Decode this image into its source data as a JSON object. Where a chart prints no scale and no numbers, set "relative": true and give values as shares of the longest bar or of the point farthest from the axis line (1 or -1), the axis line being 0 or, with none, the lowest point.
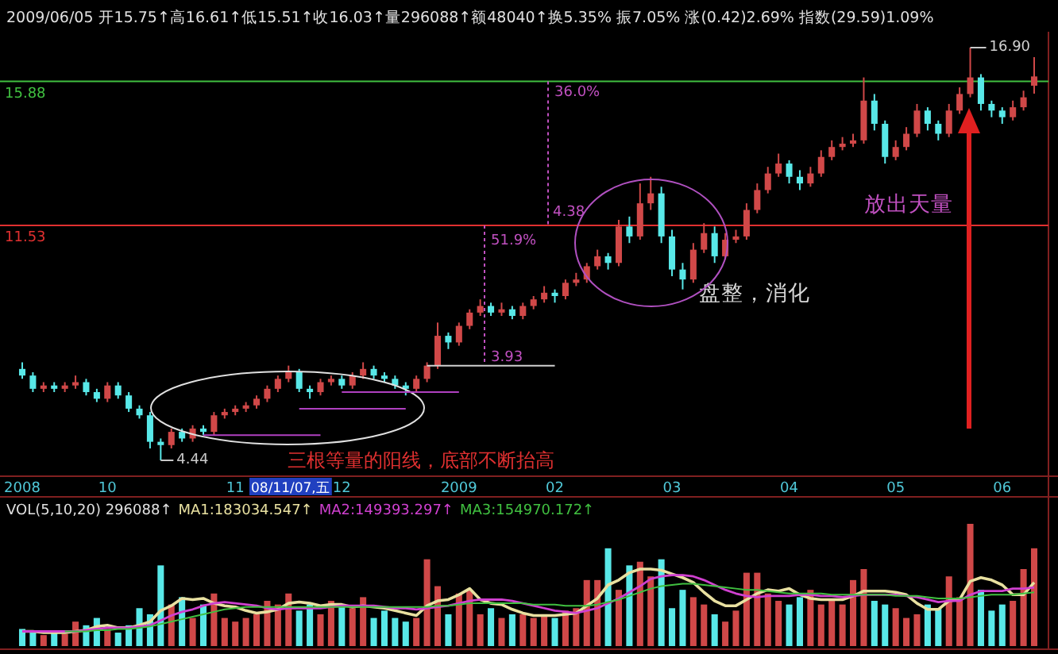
{
  "chart_data": [
    {
      "type": "candlestick",
      "subtitle": "2009/06/05 开15.75↑高16.61↑低15.51↑收16.03↑量296088↑额48040↑换5.35% 振7.05% 涨(0.42)2.69% 指数(29.59)1.09%",
      "categories": [
        "2008",
        null,
        null,
        null,
        null,
        null,
        null,
        null,
        "10",
        null,
        null,
        null,
        null,
        null,
        null,
        null,
        null,
        null,
        null,
        null,
        "11",
        null,
        null,
        null,
        null,
        null,
        null,
        null,
        null,
        null,
        "12",
        null,
        null,
        null,
        null,
        null,
        null,
        null,
        null,
        null,
        null,
        "2009",
        null,
        null,
        null,
        null,
        null,
        null,
        null,
        null,
        "02",
        null,
        null,
        null,
        null,
        null,
        null,
        null,
        null,
        null,
        null,
        "03",
        null,
        null,
        null,
        null,
        null,
        null,
        null,
        null,
        null,
        null,
        "04",
        null,
        null,
        null,
        null,
        null,
        null,
        null,
        null,
        null,
        "05",
        null,
        null,
        null,
        null,
        null,
        null,
        null,
        null,
        null,
        "06",
        null,
        null,
        null
      ],
      "ohlc": [
        [
          7.2,
          7.4,
          6.9,
          7.0
        ],
        [
          7.0,
          7.1,
          6.5,
          6.6
        ],
        [
          6.6,
          6.8,
          6.5,
          6.7
        ],
        [
          6.7,
          6.8,
          6.5,
          6.6
        ],
        [
          6.6,
          6.8,
          6.5,
          6.7
        ],
        [
          6.7,
          7.0,
          6.6,
          6.8
        ],
        [
          6.8,
          6.9,
          6.4,
          6.5
        ],
        [
          6.5,
          6.6,
          6.2,
          6.3
        ],
        [
          6.3,
          6.8,
          6.2,
          6.7
        ],
        [
          6.7,
          6.8,
          6.3,
          6.4
        ],
        [
          6.4,
          6.5,
          5.9,
          6.0
        ],
        [
          6.0,
          6.1,
          5.7,
          5.8
        ],
        [
          5.8,
          5.9,
          4.8,
          5.0
        ],
        [
          5.0,
          5.1,
          4.44,
          4.9
        ],
        [
          4.9,
          5.4,
          4.8,
          5.3
        ],
        [
          5.3,
          5.4,
          5.0,
          5.1
        ],
        [
          5.1,
          5.5,
          5.0,
          5.4
        ],
        [
          5.4,
          5.5,
          5.2,
          5.3
        ],
        [
          5.3,
          5.9,
          5.2,
          5.8
        ],
        [
          5.8,
          6.0,
          5.7,
          5.9
        ],
        [
          5.9,
          6.1,
          5.8,
          6.0
        ],
        [
          6.0,
          6.2,
          5.9,
          6.1
        ],
        [
          6.1,
          6.4,
          6.0,
          6.3
        ],
        [
          6.3,
          6.7,
          6.2,
          6.6
        ],
        [
          6.6,
          7.0,
          6.5,
          6.9
        ],
        [
          6.9,
          7.3,
          6.8,
          7.1
        ],
        [
          7.1,
          7.2,
          6.5,
          6.6
        ],
        [
          6.6,
          6.7,
          6.3,
          6.5
        ],
        [
          6.5,
          6.9,
          6.4,
          6.8
        ],
        [
          6.8,
          7.0,
          6.7,
          6.9
        ],
        [
          6.9,
          7.0,
          6.6,
          6.7
        ],
        [
          6.7,
          7.1,
          6.6,
          7.0
        ],
        [
          7.0,
          7.4,
          6.9,
          7.2
        ],
        [
          7.2,
          7.3,
          6.9,
          7.0
        ],
        [
          7.0,
          7.1,
          6.8,
          6.9
        ],
        [
          6.9,
          7.0,
          6.6,
          6.7
        ],
        [
          6.7,
          6.8,
          6.4,
          6.6
        ],
        [
          6.6,
          7.0,
          6.5,
          6.9
        ],
        [
          6.9,
          7.4,
          6.8,
          7.3
        ],
        [
          7.3,
          8.6,
          7.2,
          8.2
        ],
        [
          8.2,
          8.3,
          7.8,
          8.0
        ],
        [
          8.0,
          8.6,
          7.9,
          8.5
        ],
        [
          8.5,
          9.0,
          8.4,
          8.9
        ],
        [
          8.9,
          9.3,
          8.8,
          9.1
        ],
        [
          9.1,
          9.2,
          8.8,
          8.9
        ],
        [
          8.9,
          9.2,
          8.8,
          9.0
        ],
        [
          9.0,
          9.1,
          8.7,
          8.8
        ],
        [
          8.8,
          9.2,
          8.7,
          9.1
        ],
        [
          9.1,
          9.4,
          9.0,
          9.3
        ],
        [
          9.3,
          9.7,
          9.2,
          9.5
        ],
        [
          9.5,
          9.6,
          9.2,
          9.4
        ],
        [
          9.4,
          9.9,
          9.3,
          9.8
        ],
        [
          9.8,
          10.1,
          9.7,
          9.9
        ],
        [
          9.9,
          10.4,
          9.8,
          10.3
        ],
        [
          10.3,
          10.8,
          10.2,
          10.6
        ],
        [
          10.6,
          10.7,
          10.2,
          10.4
        ],
        [
          10.4,
          11.7,
          10.3,
          11.5
        ],
        [
          11.5,
          11.8,
          11.0,
          11.2
        ],
        [
          11.2,
          12.8,
          11.1,
          12.2
        ],
        [
          12.2,
          13.0,
          12.0,
          12.5
        ],
        [
          12.5,
          12.7,
          11.0,
          11.2
        ],
        [
          11.2,
          11.4,
          10.0,
          10.2
        ],
        [
          10.2,
          10.4,
          9.6,
          9.9
        ],
        [
          9.9,
          11.0,
          9.8,
          10.8
        ],
        [
          10.8,
          11.6,
          10.7,
          11.3
        ],
        [
          11.3,
          11.5,
          10.4,
          10.6
        ],
        [
          10.6,
          11.3,
          10.5,
          11.1
        ],
        [
          11.1,
          11.4,
          11.0,
          11.2
        ],
        [
          11.2,
          12.2,
          11.1,
          12.0
        ],
        [
          12.0,
          12.8,
          11.9,
          12.6
        ],
        [
          12.6,
          13.3,
          12.5,
          13.1
        ],
        [
          13.1,
          13.7,
          13.0,
          13.4
        ],
        [
          13.4,
          13.5,
          12.8,
          13.0
        ],
        [
          13.0,
          13.2,
          12.6,
          12.8
        ],
        [
          12.8,
          13.3,
          12.7,
          13.1
        ],
        [
          13.1,
          13.8,
          13.0,
          13.6
        ],
        [
          13.6,
          14.1,
          13.5,
          13.9
        ],
        [
          13.9,
          14.2,
          13.8,
          14.0
        ],
        [
          14.0,
          14.3,
          13.9,
          14.1
        ],
        [
          14.1,
          16.0,
          14.0,
          15.3
        ],
        [
          15.3,
          15.5,
          14.4,
          14.6
        ],
        [
          14.6,
          14.7,
          13.4,
          13.6
        ],
        [
          13.6,
          14.1,
          13.5,
          13.9
        ],
        [
          13.9,
          14.5,
          13.8,
          14.3
        ],
        [
          14.3,
          15.2,
          14.2,
          15.0
        ],
        [
          15.0,
          15.1,
          14.4,
          14.6
        ],
        [
          14.6,
          14.7,
          14.1,
          14.3
        ],
        [
          14.3,
          15.2,
          14.2,
          15.0
        ],
        [
          15.0,
          15.7,
          14.9,
          15.5
        ],
        [
          15.5,
          16.9,
          15.4,
          16.0
        ],
        [
          16.0,
          16.1,
          15.0,
          15.2
        ],
        [
          15.2,
          15.3,
          14.8,
          15.0
        ],
        [
          15.0,
          15.1,
          14.6,
          14.8
        ],
        [
          14.8,
          15.3,
          14.7,
          15.1
        ],
        [
          15.1,
          15.6,
          15.0,
          15.4
        ],
        [
          15.75,
          16.61,
          15.51,
          16.03
        ]
      ],
      "ref_lines": [
        {
          "axis": "y",
          "value": 15.88,
          "label": "15.88",
          "color": "#40c040"
        },
        {
          "axis": "y",
          "value": 11.53,
          "label": "11.53",
          "color": "#e03030"
        }
      ],
      "annotations": [
        "16.90",
        "4.44",
        {
          "text": "51.9%",
          "y": 11.53
        },
        {
          "text": "36.0%",
          "y": 15.88
        },
        {
          "text": "4.38",
          "y": 11.53
        },
        {
          "text": "3.93",
          "y": 7.3
        },
        "三根等量的阳线，底部不断抬高",
        "盘整，消化",
        "放出天量",
        "08/11/07,五"
      ],
      "series": [
        {
          "type": "line",
          "color": "#d0d0d0",
          "values": [
            null,
            null,
            null,
            null,
            null,
            null,
            null,
            null,
            null,
            null,
            null,
            null,
            null,
            null,
            null,
            null,
            null,
            null,
            null,
            null,
            null,
            null,
            null,
            null,
            null,
            null,
            null,
            null,
            null,
            null,
            null,
            null,
            null,
            null,
            null,
            null,
            null,
            null,
            7.3,
            7.3,
            7.3,
            7.3,
            7.3,
            7.3,
            7.3,
            7.3,
            7.3,
            7.3,
            7.3,
            7.3,
            7.3,
            null,
            null,
            null,
            null,
            null,
            null,
            null,
            null,
            null,
            null,
            null,
            null,
            null,
            null,
            null,
            null,
            null,
            null,
            null,
            null,
            null,
            null,
            null,
            null,
            null,
            null,
            null,
            null,
            null,
            null,
            null,
            null,
            null,
            null,
            null,
            null,
            null,
            null,
            null,
            null,
            null,
            null,
            null,
            null,
            null
          ]
        },
        {
          "type": "line",
          "color": "#b040c0",
          "values": [
            null,
            null,
            null,
            null,
            null,
            null,
            null,
            null,
            null,
            null,
            null,
            null,
            null,
            null,
            null,
            null,
            null,
            5.2,
            5.2,
            5.2,
            5.2,
            5.2,
            5.2,
            5.2,
            5.2,
            5.2,
            5.2,
            5.2,
            5.2,
            null,
            null,
            null,
            null,
            null,
            null,
            null,
            null,
            null,
            null,
            null,
            null,
            null,
            null,
            null,
            null,
            null,
            null,
            null,
            null,
            null,
            null,
            null,
            null,
            null,
            null,
            null,
            null,
            null,
            null,
            null,
            null,
            null,
            null,
            null,
            null,
            null,
            null,
            null,
            null,
            null,
            null,
            null,
            null,
            null,
            null,
            null,
            null,
            null,
            null,
            null,
            null,
            null,
            null,
            null,
            null,
            null,
            null,
            null,
            null,
            null,
            null,
            null,
            null,
            null,
            null,
            null
          ]
        },
        {
          "type": "line",
          "color": "#b040c0",
          "values": [
            null,
            null,
            null,
            null,
            null,
            null,
            null,
            null,
            null,
            null,
            null,
            null,
            null,
            null,
            null,
            null,
            null,
            null,
            null,
            null,
            null,
            null,
            null,
            null,
            null,
            null,
            6.0,
            6.0,
            6.0,
            6.0,
            6.0,
            6.0,
            6.0,
            6.0,
            6.0,
            6.0,
            6.0,
            null,
            null,
            null,
            null,
            null,
            null,
            null,
            null,
            null,
            null,
            null,
            null,
            null,
            null,
            null,
            null,
            null,
            null,
            null,
            null,
            null,
            null,
            null,
            null,
            null,
            null,
            null,
            null,
            null,
            null,
            null,
            null,
            null,
            null,
            null,
            null,
            null,
            null,
            null,
            null,
            null,
            null,
            null,
            null,
            null,
            null,
            null,
            null,
            null,
            null,
            null,
            null,
            null,
            null,
            null,
            null,
            null,
            null,
            null
          ]
        },
        {
          "type": "line",
          "color": "#b040c0",
          "values": [
            null,
            null,
            null,
            null,
            null,
            null,
            null,
            null,
            null,
            null,
            null,
            null,
            null,
            null,
            null,
            null,
            null,
            null,
            null,
            null,
            null,
            null,
            null,
            null,
            null,
            null,
            null,
            null,
            null,
            null,
            6.5,
            6.5,
            6.5,
            6.5,
            6.5,
            6.5,
            6.5,
            6.5,
            6.5,
            6.5,
            6.5,
            6.5,
            null,
            null,
            null,
            null,
            null,
            null,
            null,
            null,
            null,
            null,
            null,
            null,
            null,
            null,
            null,
            null,
            null,
            null,
            null,
            null,
            null,
            null,
            null,
            null,
            null,
            null,
            null,
            null,
            null,
            null,
            null,
            null,
            null,
            null,
            null,
            null,
            null,
            null,
            null,
            null,
            null,
            null,
            null,
            null,
            null,
            null,
            null,
            null,
            null,
            null,
            null,
            null,
            null,
            null
          ]
        }
      ],
      "tick_labels": "x"
    },
    {
      "type": "bar",
      "relative": true,
      "title": "VOL(5,10,20) 296088↑",
      "legend": "top left",
      "tick_labels": false,
      "categories": [
        null,
        null,
        null,
        null,
        null,
        null,
        null,
        null,
        null,
        null,
        null,
        null,
        null,
        null,
        null,
        null,
        null,
        null,
        null,
        null,
        null,
        null,
        null,
        null,
        null,
        null,
        null,
        null,
        null,
        null,
        null,
        null,
        null,
        null,
        null,
        null,
        null,
        null,
        null,
        null,
        null,
        null,
        null,
        null,
        null,
        null,
        null,
        null,
        null,
        null,
        null,
        null,
        null,
        null,
        null,
        null,
        null,
        null,
        null,
        null,
        null,
        null,
        null,
        null,
        null,
        null,
        null,
        null,
        null,
        null,
        null,
        null,
        null,
        null,
        null,
        null,
        null,
        null,
        null,
        null,
        null,
        null,
        null,
        null,
        null,
        null,
        null,
        null,
        null,
        null,
        null,
        null,
        null,
        null,
        null,
        null
      ],
      "series": [
        {
          "type": "bar",
          "colors": [
            "#58e8e8",
            "#58e8e8",
            "#d04848",
            "#58e8e8",
            "#d04848",
            "#d04848",
            "#58e8e8",
            "#58e8e8",
            "#d04848",
            "#58e8e8",
            "#58e8e8",
            "#58e8e8",
            "#58e8e8",
            "#58e8e8",
            "#d04848",
            "#58e8e8",
            "#d04848",
            "#58e8e8",
            "#d04848",
            "#d04848",
            "#d04848",
            "#d04848",
            "#d04848",
            "#d04848",
            "#d04848",
            "#d04848",
            "#58e8e8",
            "#58e8e8",
            "#d04848",
            "#d04848",
            "#58e8e8",
            "#d04848",
            "#d04848",
            "#58e8e8",
            "#58e8e8",
            "#58e8e8",
            "#58e8e8",
            "#d04848",
            "#d04848",
            "#d04848",
            "#58e8e8",
            "#d04848",
            "#d04848",
            "#d04848",
            "#58e8e8",
            "#d04848",
            "#58e8e8",
            "#d04848",
            "#d04848",
            "#d04848",
            "#58e8e8",
            "#d04848",
            "#d04848",
            "#d04848",
            "#d04848",
            "#58e8e8",
            "#d04848",
            "#58e8e8",
            "#d04848",
            "#d04848",
            "#58e8e8",
            "#58e8e8",
            "#58e8e8",
            "#d04848",
            "#d04848",
            "#58e8e8",
            "#d04848",
            "#d04848",
            "#d04848",
            "#d04848",
            "#d04848",
            "#d04848",
            "#58e8e8",
            "#58e8e8",
            "#d04848",
            "#d04848",
            "#d04848",
            "#d04848",
            "#d04848",
            "#d04848",
            "#58e8e8",
            "#58e8e8",
            "#d04848",
            "#d04848",
            "#d04848",
            "#58e8e8",
            "#58e8e8",
            "#d04848",
            "#d04848",
            "#d04848",
            "#58e8e8",
            "#58e8e8",
            "#58e8e8",
            "#d04848",
            "#d04848",
            "#d04848"
          ],
          "values": [
            0.14,
            0.11,
            0.09,
            0.11,
            0.1,
            0.2,
            0.17,
            0.23,
            0.14,
            0.11,
            0.17,
            0.31,
            0.26,
            0.66,
            0.34,
            0.4,
            0.23,
            0.34,
            0.43,
            0.23,
            0.2,
            0.23,
            0.26,
            0.37,
            0.34,
            0.43,
            0.29,
            0.34,
            0.26,
            0.37,
            0.34,
            0.31,
            0.4,
            0.23,
            0.29,
            0.23,
            0.2,
            0.23,
            0.71,
            0.49,
            0.26,
            0.43,
            0.46,
            0.26,
            0.31,
            0.23,
            0.26,
            0.26,
            0.23,
            0.26,
            0.23,
            0.29,
            0.31,
            0.54,
            0.54,
            0.8,
            0.46,
            0.66,
            0.69,
            0.57,
            0.71,
            0.31,
            0.46,
            0.4,
            0.34,
            0.26,
            0.2,
            0.29,
            0.6,
            0.6,
            0.43,
            0.37,
            0.34,
            0.4,
            0.46,
            0.34,
            0.37,
            0.34,
            0.54,
            0.63,
            0.37,
            0.34,
            0.31,
            0.23,
            0.26,
            0.34,
            0.31,
            0.57,
            0.4,
            1,
            0.46,
            0.29,
            0.34,
            0.37,
            0.63,
            0.8
          ]
        },
        {
          "type": "line",
          "name": "MA1:183034.547↑",
          "color": "#e8e0a0",
          "values": [
            0.12,
            0.12,
            0.11,
            0.11,
            0.11,
            0.12,
            0.13,
            0.16,
            0.17,
            0.15,
            0.15,
            0.17,
            0.2,
            0.29,
            0.33,
            0.39,
            0.38,
            0.39,
            0.35,
            0.33,
            0.32,
            0.29,
            0.27,
            0.28,
            0.3,
            0.35,
            0.36,
            0.35,
            0.33,
            0.34,
            0.34,
            0.32,
            0.33,
            0.32,
            0.31,
            0.29,
            0.27,
            0.25,
            0.33,
            0.37,
            0.38,
            0.42,
            0.47,
            0.38,
            0.35,
            0.34,
            0.3,
            0.27,
            0.25,
            0.25,
            0.25,
            0.26,
            0.27,
            0.33,
            0.39,
            0.5,
            0.54,
            0.6,
            0.63,
            0.63,
            0.62,
            0.59,
            0.56,
            0.52,
            0.44,
            0.37,
            0.33,
            0.33,
            0.38,
            0.43,
            0.46,
            0.45,
            0.47,
            0.42,
            0.39,
            0.38,
            0.38,
            0.38,
            0.41,
            0.45,
            0.45,
            0.45,
            0.44,
            0.42,
            0.35,
            0.3,
            0.3,
            0.37,
            0.38,
            0.53,
            0.56,
            0.54,
            0.5,
            0.42,
            0.42,
            0.52
          ]
        },
        {
          "type": "line",
          "name": "MA2:149393.297↑",
          "color": "#d040d0",
          "values": [
            0.12,
            0.12,
            0.12,
            0.12,
            0.12,
            0.12,
            0.13,
            0.14,
            0.15,
            0.15,
            0.15,
            0.16,
            0.17,
            0.21,
            0.25,
            0.28,
            0.3,
            0.33,
            0.35,
            0.36,
            0.35,
            0.34,
            0.33,
            0.31,
            0.3,
            0.31,
            0.31,
            0.31,
            0.31,
            0.32,
            0.33,
            0.33,
            0.33,
            0.33,
            0.32,
            0.31,
            0.31,
            0.3,
            0.31,
            0.32,
            0.33,
            0.35,
            0.37,
            0.38,
            0.38,
            0.38,
            0.37,
            0.35,
            0.33,
            0.31,
            0.29,
            0.28,
            0.27,
            0.29,
            0.31,
            0.35,
            0.39,
            0.44,
            0.49,
            0.55,
            0.57,
            0.58,
            0.58,
            0.57,
            0.54,
            0.5,
            0.46,
            0.43,
            0.41,
            0.4,
            0.41,
            0.41,
            0.41,
            0.42,
            0.42,
            0.41,
            0.41,
            0.4,
            0.41,
            0.42,
            0.42,
            0.42,
            0.42,
            0.41,
            0.4,
            0.38,
            0.36,
            0.37,
            0.37,
            0.42,
            0.45,
            0.45,
            0.45,
            0.47,
            0.47,
            0.48
          ]
        },
        {
          "type": "line",
          "name": "MA3:154970.172↑",
          "color": "#40c040",
          "values": [
            null,
            null,
            null,
            null,
            0.12,
            0.12,
            0.12,
            0.13,
            0.13,
            0.14,
            0.14,
            0.15,
            0.16,
            0.18,
            0.2,
            0.22,
            0.24,
            0.26,
            0.28,
            0.3,
            0.31,
            0.32,
            0.32,
            0.32,
            0.32,
            0.32,
            0.32,
            0.32,
            0.32,
            0.32,
            0.32,
            0.32,
            0.32,
            0.32,
            0.32,
            0.32,
            0.32,
            0.32,
            0.32,
            0.33,
            0.33,
            0.34,
            0.35,
            0.35,
            0.35,
            0.35,
            0.35,
            0.35,
            0.34,
            0.34,
            0.34,
            0.33,
            0.33,
            0.33,
            0.34,
            0.36,
            0.38,
            0.41,
            0.44,
            0.47,
            0.49,
            0.5,
            0.51,
            0.51,
            0.5,
            0.49,
            0.48,
            0.47,
            0.46,
            0.46,
            0.45,
            0.44,
            0.43,
            0.43,
            0.43,
            0.43,
            0.42,
            0.42,
            0.42,
            0.42,
            0.42,
            0.42,
            0.41,
            0.41,
            0.41,
            0.4,
            0.39,
            0.39,
            0.39,
            0.4,
            0.41,
            0.42,
            0.42,
            0.42,
            0.43,
            0.44
          ]
        }
      ]
    }
  ]
}
